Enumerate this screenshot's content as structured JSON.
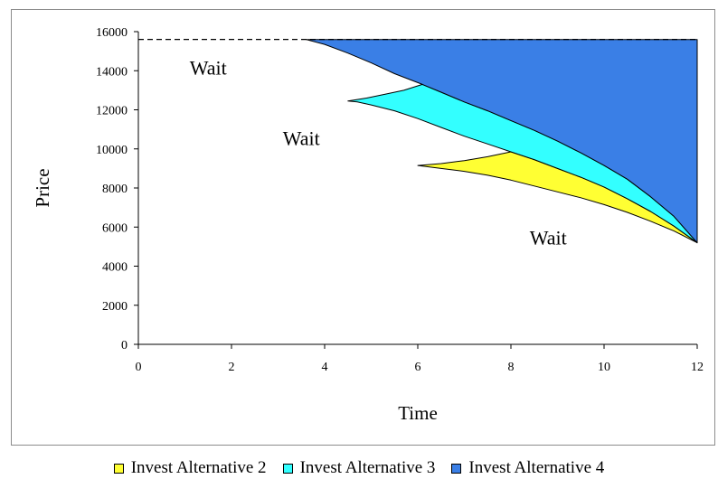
{
  "chart_data": {
    "type": "area",
    "title": "",
    "xlabel": "Time",
    "ylabel": "Price",
    "xlim": [
      0,
      12
    ],
    "ylim": [
      0,
      16000
    ],
    "x_ticks": [
      0,
      2,
      4,
      6,
      8,
      10,
      12
    ],
    "y_ticks": [
      0,
      2000,
      4000,
      6000,
      8000,
      10000,
      12000,
      14000,
      16000
    ],
    "grid": false,
    "legend_position": "bottom",
    "reference_line": {
      "y": 15600,
      "style": "dashed"
    },
    "regions": [
      {
        "name": "Invest Alternative 2",
        "color": "#ffff33",
        "boundary": [
          [
            6,
            9150
          ],
          [
            6.5,
            9250
          ],
          [
            7,
            9400
          ],
          [
            7.5,
            9600
          ],
          [
            8,
            9850
          ],
          [
            8.5,
            9450
          ],
          [
            9,
            9000
          ],
          [
            9.5,
            8550
          ],
          [
            10,
            8050
          ],
          [
            10.5,
            7450
          ],
          [
            11,
            6800
          ],
          [
            11.5,
            6050
          ],
          [
            12,
            5200
          ],
          [
            11.5,
            5800
          ],
          [
            11,
            6300
          ],
          [
            10.5,
            6750
          ],
          [
            10,
            7150
          ],
          [
            9.5,
            7500
          ],
          [
            9,
            7800
          ],
          [
            8.5,
            8100
          ],
          [
            8,
            8400
          ],
          [
            7.5,
            8650
          ],
          [
            7,
            8850
          ],
          [
            6.5,
            9000
          ],
          [
            6,
            9150
          ]
        ]
      },
      {
        "name": "Invest Alternative 3",
        "color": "#33ffff",
        "boundary": [
          [
            4.5,
            12450
          ],
          [
            4.9,
            12600
          ],
          [
            5.3,
            12800
          ],
          [
            5.7,
            13000
          ],
          [
            6.1,
            13300
          ],
          [
            6.5,
            12900
          ],
          [
            7,
            12400
          ],
          [
            7.5,
            11950
          ],
          [
            8,
            11450
          ],
          [
            8.5,
            10950
          ],
          [
            9,
            10400
          ],
          [
            9.5,
            9800
          ],
          [
            10,
            9150
          ],
          [
            10.5,
            8450
          ],
          [
            11,
            7550
          ],
          [
            11.5,
            6550
          ],
          [
            12,
            5200
          ],
          [
            11.5,
            6050
          ],
          [
            11,
            6800
          ],
          [
            10.5,
            7450
          ],
          [
            10,
            8050
          ],
          [
            9.5,
            8550
          ],
          [
            9,
            9000
          ],
          [
            8.5,
            9450
          ],
          [
            8,
            9850
          ],
          [
            7.5,
            10250
          ],
          [
            7,
            10650
          ],
          [
            6.5,
            11100
          ],
          [
            6,
            11550
          ],
          [
            5.5,
            11950
          ],
          [
            5,
            12250
          ],
          [
            4.7,
            12400
          ],
          [
            4.5,
            12450
          ]
        ]
      },
      {
        "name": "Invest Alternative 4",
        "color": "#3a7fe6",
        "boundary": [
          [
            3.6,
            15600
          ],
          [
            12,
            15600
          ],
          [
            12,
            5200
          ],
          [
            11.5,
            6550
          ],
          [
            11,
            7550
          ],
          [
            10.5,
            8450
          ],
          [
            10,
            9150
          ],
          [
            9.5,
            9800
          ],
          [
            9,
            10400
          ],
          [
            8.5,
            10950
          ],
          [
            8,
            11450
          ],
          [
            7.5,
            11950
          ],
          [
            7,
            12400
          ],
          [
            6.5,
            12900
          ],
          [
            6.1,
            13300
          ],
          [
            5.5,
            13850
          ],
          [
            5,
            14400
          ],
          [
            4.5,
            14900
          ],
          [
            4,
            15350
          ],
          [
            3.6,
            15600
          ]
        ]
      }
    ],
    "annotations": [
      {
        "text": "Wait",
        "x": 1.5,
        "y": 13800
      },
      {
        "text": "Wait",
        "x": 3.5,
        "y": 10200
      },
      {
        "text": "Wait",
        "x": 8.8,
        "y": 5100
      }
    ]
  },
  "legend": [
    {
      "label": "Invest Alternative 2",
      "color": "#ffff33"
    },
    {
      "label": "Invest Alternative 3",
      "color": "#33ffff"
    },
    {
      "label": "Invest Alternative 4",
      "color": "#3a7fe6"
    }
  ]
}
